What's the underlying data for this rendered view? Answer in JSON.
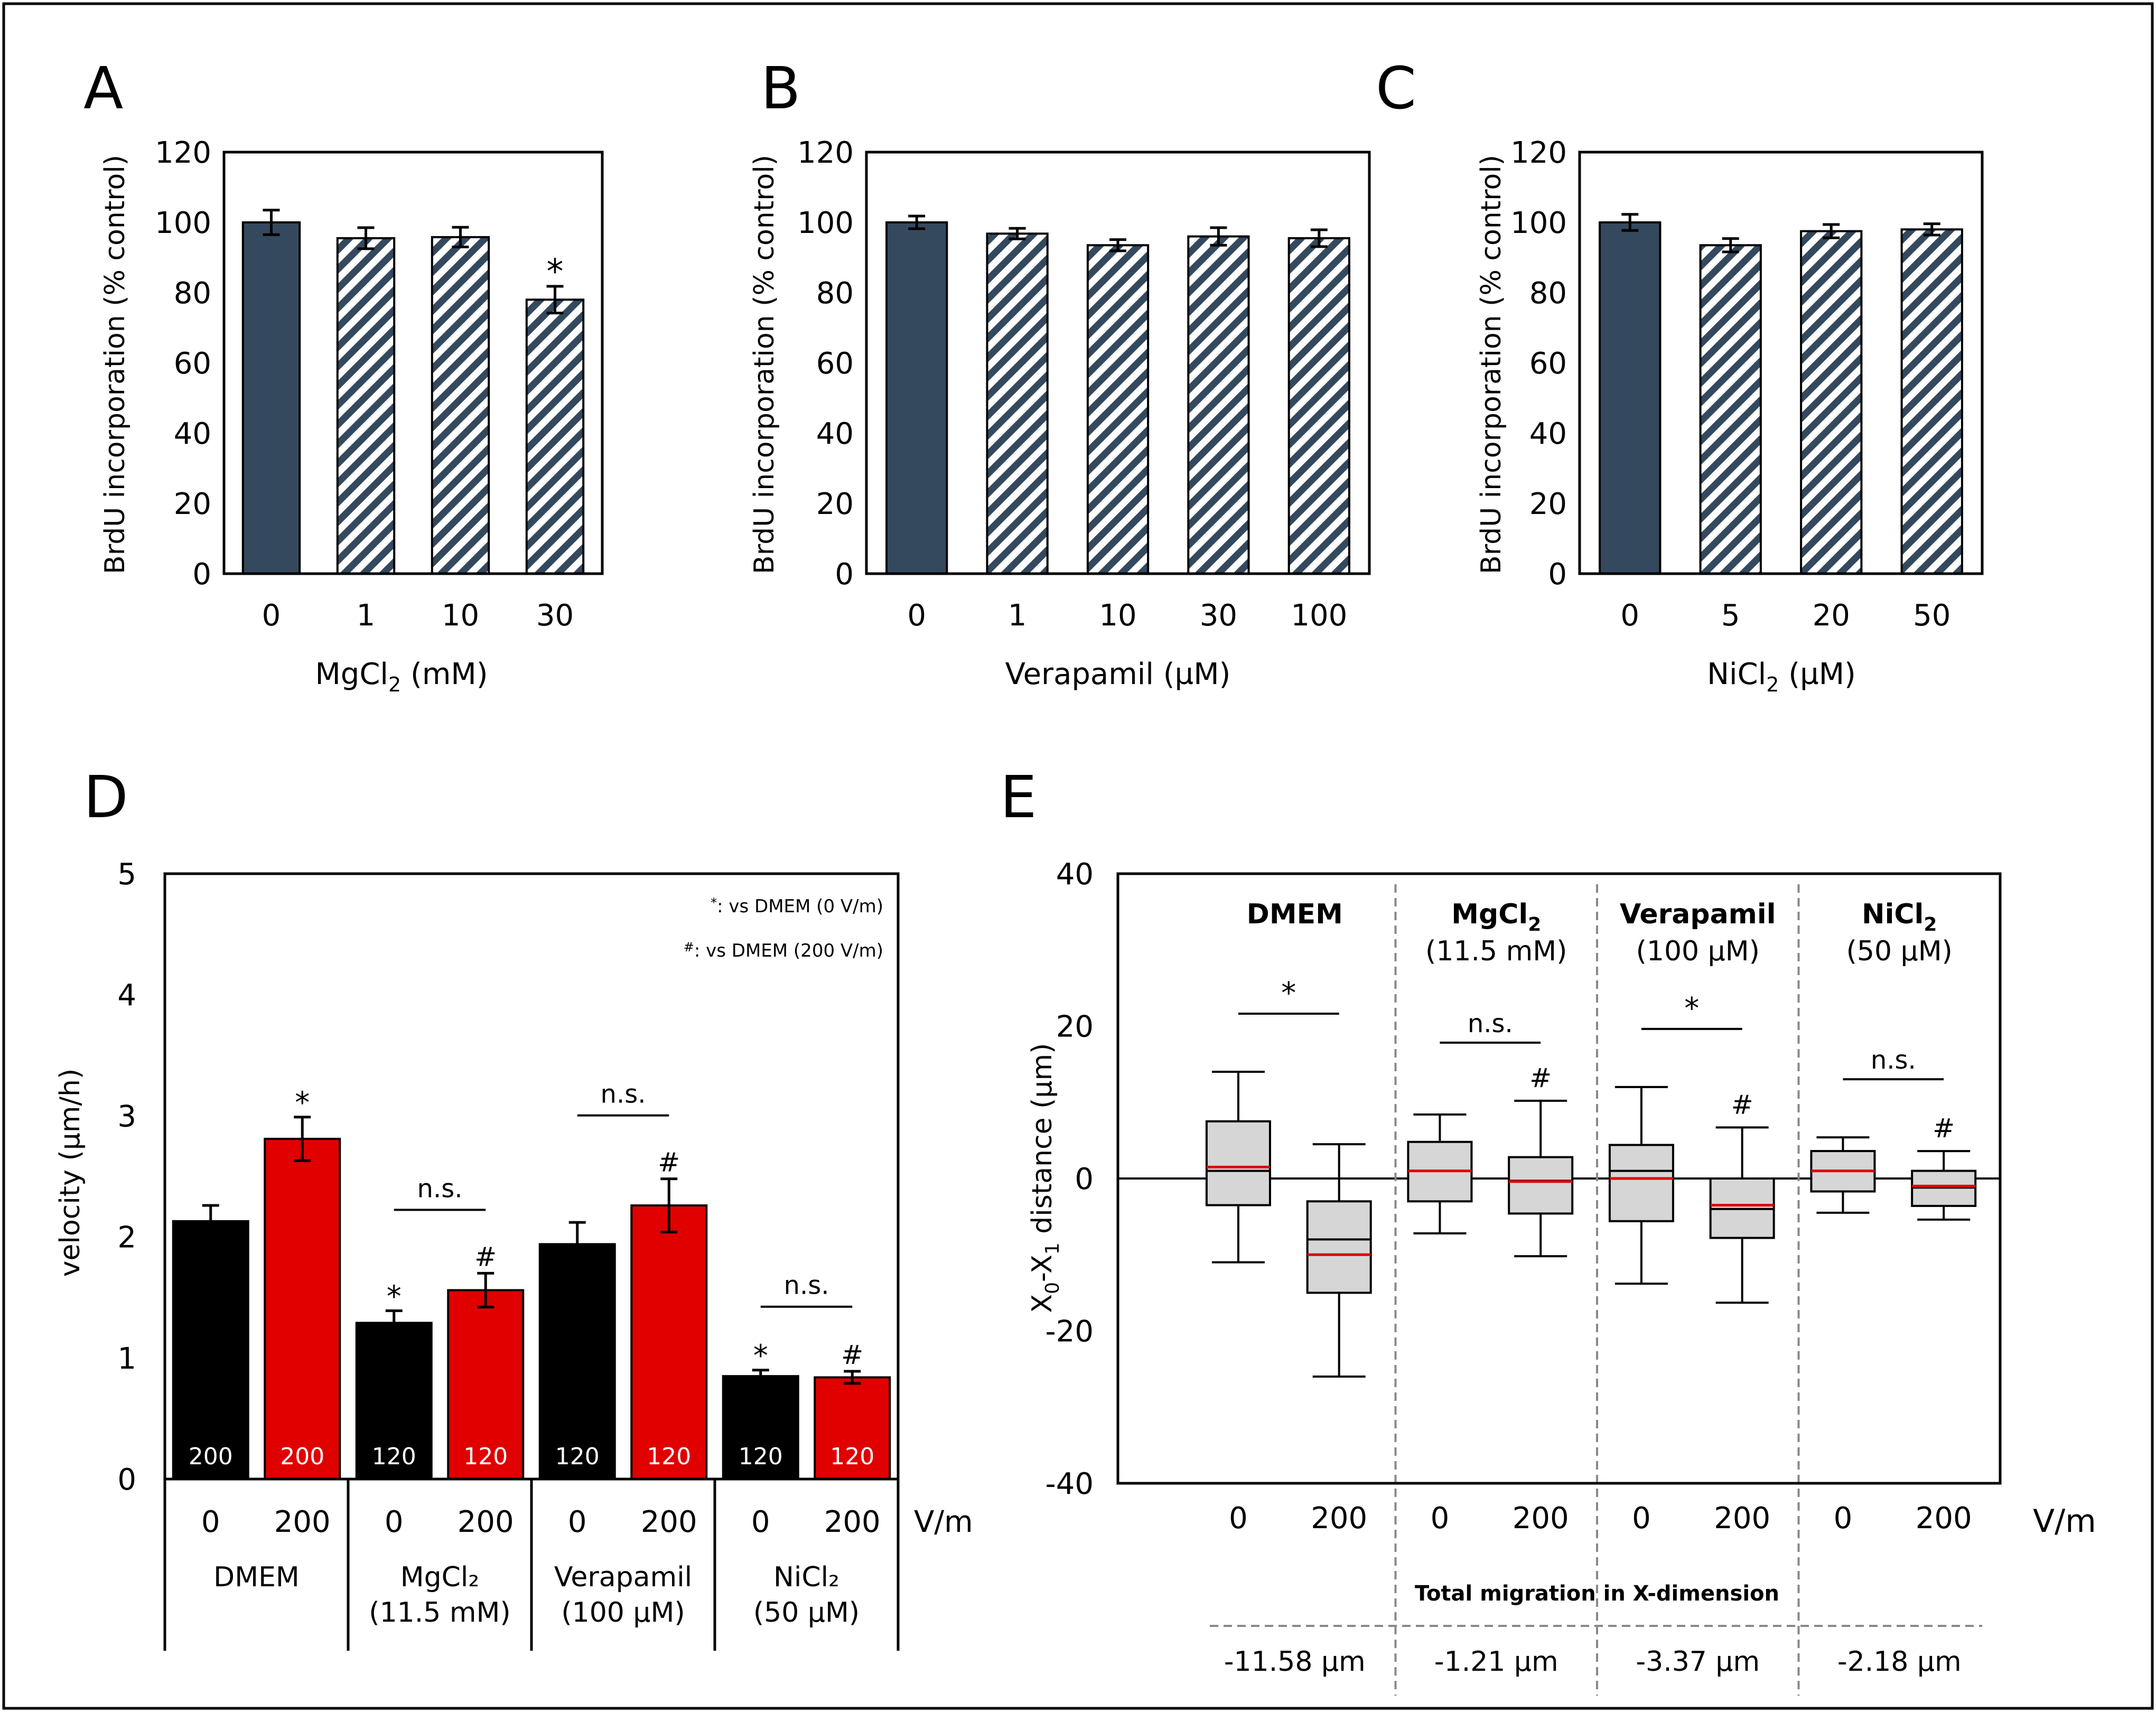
{
  "chart_data": [
    {
      "panel": "A",
      "type": "bar",
      "categories": [
        "0",
        "1",
        "10",
        "30"
      ],
      "values": [
        100,
        95.5,
        95.8,
        78
      ],
      "errors": [
        3.5,
        3,
        2.8,
        3.8
      ],
      "fills": [
        "solid",
        "hatch",
        "hatch",
        "hatch"
      ],
      "significance": [
        "",
        "",
        "",
        "*"
      ],
      "xlabel_main": "MgCl",
      "xlabel_sub": "2",
      "xlabel_tail": " (mM)",
      "ylabel": "BrdU incorporation (% control)",
      "ylim": [
        0,
        120
      ],
      "yticks": [
        "0",
        "20",
        "40",
        "60",
        "80",
        "100",
        "120"
      ]
    },
    {
      "panel": "B",
      "type": "bar",
      "categories": [
        "0",
        "1",
        "10",
        "30",
        "100"
      ],
      "values": [
        100,
        96.8,
        93.5,
        96,
        95.5
      ],
      "errors": [
        1.8,
        1.5,
        1.6,
        2.5,
        2.4
      ],
      "fills": [
        "solid",
        "hatch",
        "hatch",
        "hatch",
        "hatch"
      ],
      "significance": [
        "",
        "",
        "",
        "",
        ""
      ],
      "xlabel_main": "Verapamil (µM)",
      "xlabel_sub": "",
      "xlabel_tail": "",
      "ylabel": "BrdU incorporation (% control)",
      "ylim": [
        0,
        120
      ],
      "yticks": [
        "0",
        "20",
        "40",
        "60",
        "80",
        "100",
        "120"
      ]
    },
    {
      "panel": "C",
      "type": "bar",
      "categories": [
        "0",
        "5",
        "20",
        "50"
      ],
      "values": [
        100,
        93.5,
        97.5,
        98
      ],
      "errors": [
        2.3,
        1.9,
        1.9,
        1.6
      ],
      "fills": [
        "solid",
        "hatch",
        "hatch",
        "hatch"
      ],
      "significance": [
        "",
        "",
        "",
        ""
      ],
      "xlabel_main": "NiCl",
      "xlabel_sub": "2",
      "xlabel_tail": " (µM)",
      "ylabel": "BrdU incorporation (% control)",
      "ylim": [
        0,
        120
      ],
      "yticks": [
        "0",
        "20",
        "40",
        "60",
        "80",
        "100",
        "120"
      ]
    },
    {
      "panel": "D",
      "type": "bar",
      "ylabel": "velocity (µm/h)",
      "ylim": [
        0,
        5
      ],
      "yticks": [
        "0",
        "1",
        "2",
        "3",
        "4",
        "5"
      ],
      "unit_label": "V/m",
      "legend": [
        {
          "symbol": "*",
          "text": ": vs DMEM (0 V/m)"
        },
        {
          "symbol": "#",
          "text": ": vs DMEM (200 V/m)"
        }
      ],
      "groups": [
        {
          "name": "DMEM",
          "sub": "",
          "bars": [
            {
              "voltage": "0",
              "value": 2.13,
              "error": 0.13,
              "color": "black",
              "n": "200",
              "sig": ""
            },
            {
              "voltage": "200",
              "value": 2.81,
              "error": 0.18,
              "color": "red",
              "n": "200",
              "sig": "*"
            }
          ],
          "bracket": ""
        },
        {
          "name": "MgCl₂",
          "sub": "(11.5 mM)",
          "bars": [
            {
              "voltage": "0",
              "value": 1.29,
              "error": 0.1,
              "color": "black",
              "n": "120",
              "sig": "*"
            },
            {
              "voltage": "200",
              "value": 1.56,
              "error": 0.14,
              "color": "red",
              "n": "120",
              "sig": "#"
            }
          ],
          "bracket": "n.s."
        },
        {
          "name": "Verapamil",
          "sub": "(100 µM)",
          "bars": [
            {
              "voltage": "0",
              "value": 1.94,
              "error": 0.18,
              "color": "black",
              "n": "120",
              "sig": ""
            },
            {
              "voltage": "200",
              "value": 2.26,
              "error": 0.22,
              "color": "red",
              "n": "120",
              "sig": "#"
            }
          ],
          "bracket": "n.s."
        },
        {
          "name": "NiCl₂",
          "sub": "(50 µM)",
          "bars": [
            {
              "voltage": "0",
              "value": 0.85,
              "error": 0.05,
              "color": "black",
              "n": "120",
              "sig": "*"
            },
            {
              "voltage": "200",
              "value": 0.84,
              "error": 0.05,
              "color": "red",
              "n": "120",
              "sig": "#"
            }
          ],
          "bracket": "n.s."
        }
      ]
    },
    {
      "panel": "E",
      "type": "box",
      "ylabel": "X₀-X₁ distance (µm)",
      "ylim": [
        -40,
        40
      ],
      "yticks": [
        "-40",
        "-20",
        "0",
        "20",
        "40"
      ],
      "unit_label": "V/m",
      "total_label": "Total migration in X-dimension",
      "groups": [
        {
          "title": "DMEM",
          "sub": "",
          "bracket": "*",
          "total": "-11.58 µm",
          "boxes": [
            {
              "voltage": "0",
              "whisker_low": -11,
              "q1": -3.5,
              "median": 1,
              "mean": 1.5,
              "q3": 7.5,
              "whisker_high": 14,
              "sig": ""
            },
            {
              "voltage": "200",
              "whisker_low": -26,
              "q1": -15,
              "median": -8,
              "mean": -10,
              "q3": -3,
              "whisker_high": 4.5,
              "sig": ""
            }
          ]
        },
        {
          "title": "MgCl₂",
          "sub": "(11.5 mM)",
          "bracket": "n.s.",
          "total": "-1.21 µm",
          "boxes": [
            {
              "voltage": "0",
              "whisker_low": -7.2,
              "q1": -3,
              "median": 1,
              "mean": 1,
              "q3": 4.8,
              "whisker_high": 8.4,
              "sig": ""
            },
            {
              "voltage": "200",
              "whisker_low": -10.2,
              "q1": -4.6,
              "median": -0.3,
              "mean": -0.4,
              "q3": 2.8,
              "whisker_high": 10.2,
              "sig": "#"
            }
          ]
        },
        {
          "title": "Verapamil",
          "sub": "(100 µM)",
          "bracket": "*",
          "total": "-3.37 µm",
          "boxes": [
            {
              "voltage": "0",
              "whisker_low": -13.8,
              "q1": -5.6,
              "median": 1,
              "mean": 0,
              "q3": 4.4,
              "whisker_high": 12,
              "sig": ""
            },
            {
              "voltage": "200",
              "whisker_low": -16.3,
              "q1": -7.8,
              "median": -4,
              "mean": -3.5,
              "q3": 0,
              "whisker_high": 6.7,
              "sig": "#"
            }
          ]
        },
        {
          "title": "NiCl₂",
          "sub": "(50 µM)",
          "bracket": "n.s.",
          "total": "-2.18 µm",
          "boxes": [
            {
              "voltage": "0",
              "whisker_low": -4.5,
              "q1": -1.7,
              "median": 1,
              "mean": 1,
              "q3": 3.6,
              "whisker_high": 5.4,
              "sig": ""
            },
            {
              "voltage": "200",
              "whisker_low": -5.4,
              "q1": -3.6,
              "median": -1.2,
              "mean": -1,
              "q3": 1,
              "whisker_high": 3.6,
              "sig": "#"
            }
          ]
        }
      ]
    }
  ]
}
